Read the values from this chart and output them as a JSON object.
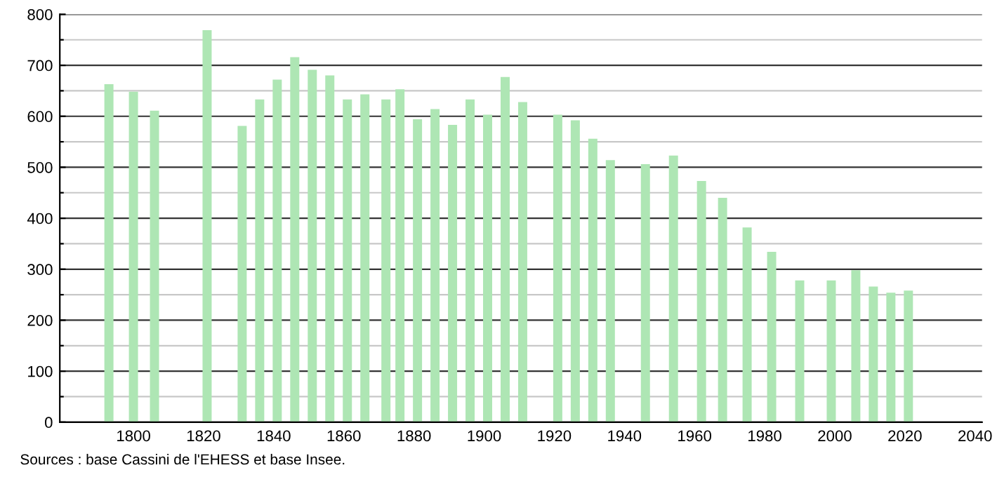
{
  "chart_data": {
    "type": "bar",
    "x": [
      1793,
      1800,
      1806,
      1821,
      1831,
      1836,
      1841,
      1846,
      1851,
      1856,
      1861,
      1866,
      1872,
      1876,
      1881,
      1886,
      1891,
      1896,
      1901,
      1906,
      1911,
      1921,
      1926,
      1931,
      1936,
      1946,
      1954,
      1962,
      1968,
      1975,
      1982,
      1990,
      1999,
      2006,
      2011,
      2016,
      2021
    ],
    "values": [
      663,
      648,
      611,
      769,
      581,
      633,
      672,
      716,
      691,
      680,
      633,
      643,
      633,
      653,
      594,
      614,
      583,
      633,
      603,
      677,
      628,
      603,
      592,
      556,
      514,
      506,
      523,
      473,
      440,
      382,
      334,
      278,
      278,
      298,
      266,
      254,
      258
    ],
    "color": "#aee6b4",
    "xlim": [
      1779,
      2042
    ],
    "xticks": [
      1800,
      1820,
      1840,
      1860,
      1880,
      1900,
      1920,
      1940,
      1960,
      1980,
      2000,
      2020,
      2040
    ],
    "ylim": [
      0,
      800
    ],
    "yticks": [
      0,
      {
        "value": 50,
        "label": null
      },
      100,
      {
        "value": 150,
        "label": null
      },
      200,
      {
        "value": 250,
        "label": null
      },
      300,
      {
        "value": 350,
        "label": null
      },
      400,
      {
        "value": 450,
        "label": null
      },
      500,
      {
        "value": 550,
        "label": null
      },
      600,
      {
        "value": 650,
        "label": null
      },
      700,
      {
        "value": 750,
        "label": null
      },
      800
    ],
    "grid": "y",
    "annotations": [
      "Sources : base Cassini de l'EHESS et base Insee."
    ]
  }
}
